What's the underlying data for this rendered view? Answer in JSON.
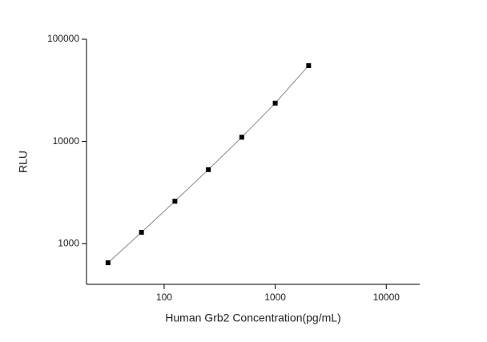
{
  "chart_data": {
    "type": "scatter",
    "x_label": "Human Grb2 Concentration(pg/mL)",
    "y_label": "RLU",
    "xlog": true,
    "ylog": true,
    "xlim": [
      20,
      20000
    ],
    "ylim": [
      400,
      100000
    ],
    "xticks": [
      100,
      1000,
      10000
    ],
    "yticks": [
      1000,
      10000,
      100000
    ],
    "series": [
      {
        "color": "#000000",
        "line_color": "#888888",
        "x": [
          31.25,
          62.5,
          125,
          250,
          500,
          1000,
          2000
        ],
        "values": [
          650,
          1290,
          2600,
          5300,
          11000,
          23700,
          55200
        ]
      }
    ]
  }
}
